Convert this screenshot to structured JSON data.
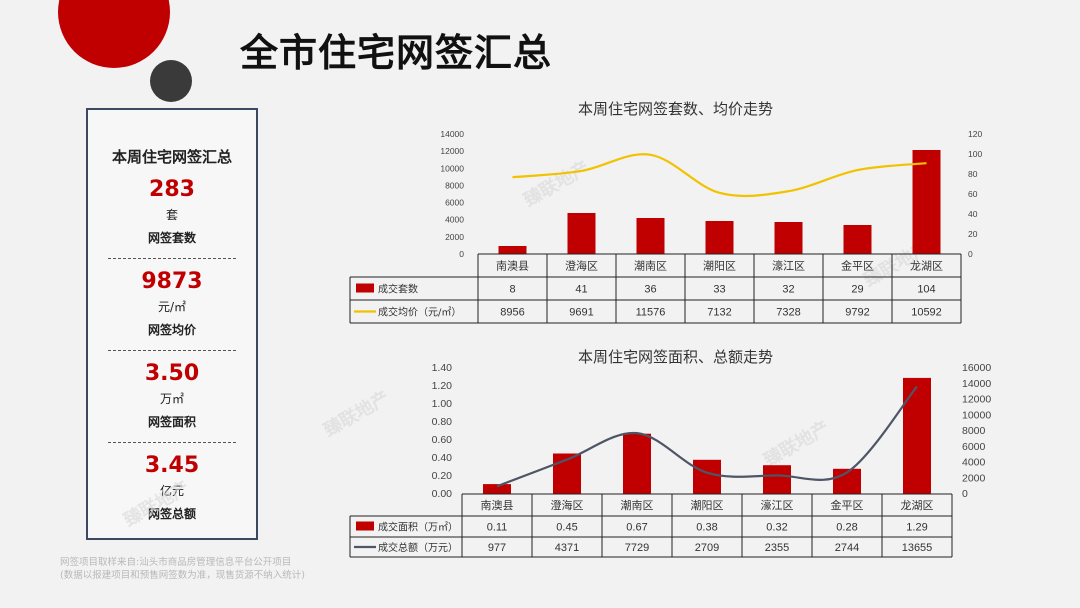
{
  "page": {
    "title": "全市住宅网签汇总"
  },
  "summary": {
    "title": "本周住宅网签汇总",
    "kpis": [
      {
        "value": "283",
        "unit": "套",
        "label": "网签套数"
      },
      {
        "value": "9873",
        "unit": "元/㎡",
        "label": "网签均价"
      },
      {
        "value": "3.50",
        "unit": "万㎡",
        "label": "网签面积"
      },
      {
        "value": "3.45",
        "unit": "亿元",
        "label": "网签总额"
      }
    ]
  },
  "source": {
    "line1": "网签项目取样来自:汕头市商品房管理信息平台公开项目",
    "line2": "(数据以报建项目和预售网签数为准，现售货源不纳入统计)"
  },
  "watermark": "臻联地产",
  "colors": {
    "bar": "#c00000",
    "line1": "#f2c200",
    "line2": "#4d5566"
  },
  "chart_data": [
    {
      "type": "bar",
      "title": "本周住宅网签套数、均价走势",
      "categories": [
        "南澳县",
        "澄海区",
        "潮南区",
        "潮阳区",
        "濠江区",
        "金平区",
        "龙湖区"
      ],
      "series": [
        {
          "name": "成交套数",
          "kind": "bar",
          "axis": "right",
          "values": [
            8,
            41,
            36,
            33,
            32,
            29,
            104
          ]
        },
        {
          "name": "成交均价（元/㎡）",
          "kind": "line",
          "axis": "left",
          "values": [
            8956,
            9691,
            11576,
            7132,
            7328,
            9792,
            10592
          ]
        }
      ],
      "left_ticks": [
        "14000",
        "12000",
        "10000",
        "8000",
        "6000",
        "4000",
        "2000",
        "0"
      ],
      "right_ticks": [
        "120",
        "100",
        "80",
        "60",
        "40",
        "20",
        "0"
      ],
      "ylim_left": [
        0,
        14000
      ],
      "ylim_right": [
        0,
        120
      ]
    },
    {
      "type": "bar",
      "title": "本周住宅网签面积、总额走势",
      "categories": [
        "南澳县",
        "澄海区",
        "潮南区",
        "潮阳区",
        "濠江区",
        "金平区",
        "龙湖区"
      ],
      "series": [
        {
          "name": "成交面积（万㎡）",
          "kind": "bar",
          "axis": "left",
          "values": [
            0.11,
            0.45,
            0.67,
            0.38,
            0.32,
            0.28,
            1.29
          ]
        },
        {
          "name": "成交总额（万元）",
          "kind": "line",
          "axis": "right",
          "values": [
            977,
            4371,
            7729,
            2709,
            2355,
            2744,
            13655
          ]
        }
      ],
      "left_ticks": [
        "1.40",
        "1.20",
        "1.00",
        "0.80",
        "0.60",
        "0.40",
        "0.20",
        "0.00"
      ],
      "right_ticks": [
        "16000",
        "14000",
        "12000",
        "10000",
        "8000",
        "6000",
        "4000",
        "2000",
        "0"
      ],
      "ylim_left": [
        0,
        1.4
      ],
      "ylim_right": [
        0,
        16000
      ]
    }
  ]
}
